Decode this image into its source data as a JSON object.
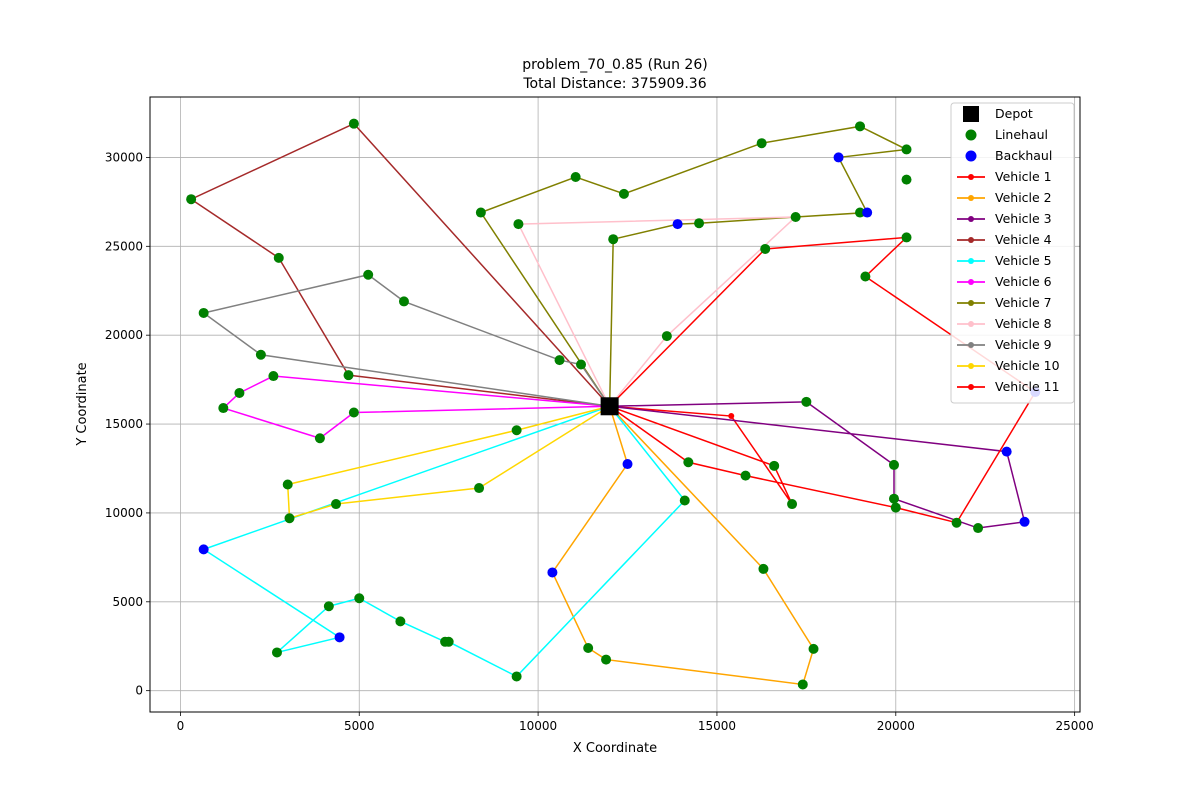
{
  "chart_data": {
    "type": "scatter",
    "title": "problem_70_0.85 (Run 26)",
    "subtitle": "Total Distance: 375909.36",
    "xlabel": "X Coordinate",
    "ylabel": "Y Coordinate",
    "xlim": [
      -850,
      25150
    ],
    "ylim": [
      -1200,
      33400
    ],
    "xticks": [
      0,
      5000,
      10000,
      15000,
      20000,
      25000
    ],
    "yticks": [
      0,
      5000,
      10000,
      15000,
      20000,
      25000,
      30000
    ],
    "grid": true,
    "legend_position": "top-right",
    "depot": {
      "name": "Depot",
      "x": 12000,
      "y": 16000,
      "color": "#000000"
    },
    "linehaul_label": "Linehaul",
    "backhaul_label": "Backhaul",
    "linehaul_color": "#008000",
    "backhaul_color": "#0000ff",
    "series": [
      {
        "name": "Vehicle 1",
        "color": "#ff0000",
        "linehaul": [
          [
            16600,
            12650
          ],
          [
            17100,
            10500
          ]
        ],
        "backhaul": [],
        "route": [
          [
            12000,
            16000
          ],
          [
            16600,
            12650
          ],
          [
            17100,
            10500
          ],
          [
            15400,
            15450
          ],
          [
            12000,
            16000
          ]
        ]
      },
      {
        "name": "Vehicle 2",
        "color": "#ffa500",
        "linehaul": [
          [
            16300,
            6850
          ],
          [
            17700,
            2350
          ],
          [
            17400,
            350
          ],
          [
            11900,
            1750
          ],
          [
            11400,
            2400
          ]
        ],
        "backhaul": [
          [
            10400,
            6650
          ],
          [
            12500,
            12750
          ]
        ],
        "route": [
          [
            12000,
            16000
          ],
          [
            16300,
            6850
          ],
          [
            17700,
            2350
          ],
          [
            17400,
            350
          ],
          [
            11900,
            1750
          ],
          [
            11400,
            2400
          ],
          [
            10400,
            6650
          ],
          [
            12500,
            12750
          ],
          [
            12000,
            16000
          ]
        ]
      },
      {
        "name": "Vehicle 3",
        "color": "#800080",
        "linehaul": [
          [
            17500,
            16250
          ],
          [
            19950,
            12700
          ],
          [
            19950,
            10800
          ],
          [
            22300,
            9150
          ]
        ],
        "backhaul": [
          [
            23600,
            9500
          ],
          [
            23100,
            13450
          ]
        ],
        "route": [
          [
            12000,
            16000
          ],
          [
            17500,
            16250
          ],
          [
            19950,
            12700
          ],
          [
            19950,
            10800
          ],
          [
            22300,
            9150
          ],
          [
            23600,
            9500
          ],
          [
            23100,
            13450
          ],
          [
            12000,
            16000
          ]
        ]
      },
      {
        "name": "Vehicle 4",
        "color": "#a52a2a",
        "linehaul": [
          [
            4850,
            31900
          ],
          [
            300,
            27650
          ],
          [
            2750,
            24350
          ],
          [
            4700,
            17750
          ]
        ],
        "backhaul": [],
        "route": [
          [
            12000,
            16000
          ],
          [
            4850,
            31900
          ],
          [
            300,
            27650
          ],
          [
            2750,
            24350
          ],
          [
            4700,
            17750
          ],
          [
            12000,
            16000
          ]
        ]
      },
      {
        "name": "Vehicle 5",
        "color": "#00ffff",
        "linehaul": [
          [
            14100,
            10700
          ],
          [
            9400,
            800
          ],
          [
            7500,
            2750
          ],
          [
            7400,
            2750
          ],
          [
            6150,
            3900
          ],
          [
            5000,
            5200
          ],
          [
            4150,
            4750
          ],
          [
            2700,
            2150
          ]
        ],
        "backhaul": [
          [
            4450,
            3000
          ],
          [
            650,
            7950
          ]
        ],
        "route": [
          [
            12000,
            16000
          ],
          [
            14100,
            10700
          ],
          [
            9400,
            800
          ],
          [
            7500,
            2750
          ],
          [
            7400,
            2750
          ],
          [
            6150,
            3900
          ],
          [
            5000,
            5200
          ],
          [
            4150,
            4750
          ],
          [
            2700,
            2150
          ],
          [
            4450,
            3000
          ],
          [
            650,
            7950
          ],
          [
            12000,
            16000
          ]
        ]
      },
      {
        "name": "Vehicle 6",
        "color": "#ff00ff",
        "linehaul": [
          [
            4850,
            15650
          ],
          [
            3900,
            14200
          ],
          [
            1200,
            15900
          ],
          [
            1650,
            16750
          ],
          [
            2600,
            17700
          ]
        ],
        "backhaul": [],
        "route": [
          [
            12000,
            16000
          ],
          [
            4850,
            15650
          ],
          [
            3900,
            14200
          ],
          [
            1200,
            15900
          ],
          [
            1650,
            16750
          ],
          [
            2600,
            17700
          ],
          [
            12000,
            16000
          ]
        ]
      },
      {
        "name": "Vehicle 7",
        "color": "#808000",
        "linehaul": [
          [
            12100,
            25400
          ],
          [
            14500,
            26300
          ],
          [
            17200,
            26650
          ],
          [
            19000,
            26900
          ],
          [
            20300,
            28750
          ],
          [
            20300,
            30450
          ],
          [
            19000,
            31750
          ],
          [
            16250,
            30800
          ],
          [
            12400,
            27950
          ],
          [
            11050,
            28900
          ],
          [
            8400,
            26900
          ]
        ],
        "backhaul": [
          [
            13900,
            26250
          ],
          [
            19200,
            26900
          ],
          [
            18400,
            30000
          ]
        ],
        "route": [
          [
            12000,
            16000
          ],
          [
            12100,
            25400
          ],
          [
            13900,
            26250
          ],
          [
            14500,
            26300
          ],
          [
            17200,
            26650
          ],
          [
            19200,
            26900
          ],
          [
            18400,
            30000
          ],
          [
            20300,
            30450
          ],
          [
            19000,
            31750
          ],
          [
            16250,
            30800
          ],
          [
            12400,
            27950
          ],
          [
            11050,
            28900
          ],
          [
            8400,
            26900
          ],
          [
            12000,
            16000
          ]
        ]
      },
      {
        "name": "Vehicle 8",
        "color": "#ffc0cb",
        "linehaul": [
          [
            13600,
            19950
          ],
          [
            9450,
            26250
          ]
        ],
        "backhaul": [],
        "route": [
          [
            12000,
            16000
          ],
          [
            13600,
            19950
          ],
          [
            17200,
            26650
          ],
          [
            9450,
            26250
          ],
          [
            12000,
            16000
          ]
        ]
      },
      {
        "name": "Vehicle 9",
        "color": "#808080",
        "linehaul": [
          [
            11200,
            18350
          ],
          [
            10600,
            18600
          ],
          [
            6250,
            21900
          ],
          [
            5250,
            23400
          ],
          [
            650,
            21250
          ],
          [
            2250,
            18900
          ]
        ],
        "backhaul": [],
        "route": [
          [
            12000,
            16000
          ],
          [
            11200,
            18350
          ],
          [
            10600,
            18600
          ],
          [
            6250,
            21900
          ],
          [
            5250,
            23400
          ],
          [
            650,
            21250
          ],
          [
            2250,
            18900
          ],
          [
            12000,
            16000
          ]
        ]
      },
      {
        "name": "Vehicle 10",
        "color": "#ffd700",
        "linehaul": [
          [
            9400,
            14650
          ],
          [
            3000,
            11600
          ],
          [
            3050,
            9700
          ],
          [
            4350,
            10500
          ],
          [
            8350,
            11400
          ]
        ],
        "backhaul": [],
        "route": [
          [
            12000,
            16000
          ],
          [
            9400,
            14650
          ],
          [
            3000,
            11600
          ],
          [
            3050,
            9700
          ],
          [
            4350,
            10500
          ],
          [
            8350,
            11400
          ],
          [
            12000,
            16000
          ]
        ]
      },
      {
        "name": "Vehicle 11",
        "color": "#ff0000",
        "linehaul": [
          [
            16350,
            24850
          ],
          [
            20300,
            25500
          ],
          [
            19150,
            23300
          ],
          [
            21700,
            9450
          ],
          [
            20000,
            10300
          ],
          [
            15800,
            12100
          ],
          [
            14200,
            12850
          ]
        ],
        "backhaul": [
          [
            23900,
            16800
          ]
        ],
        "route": [
          [
            12000,
            16000
          ],
          [
            16350,
            24850
          ],
          [
            20300,
            25500
          ],
          [
            19150,
            23300
          ],
          [
            23900,
            16800
          ],
          [
            21700,
            9450
          ],
          [
            20000,
            10300
          ],
          [
            15800,
            12100
          ],
          [
            14200,
            12850
          ],
          [
            12000,
            16000
          ]
        ]
      }
    ]
  }
}
